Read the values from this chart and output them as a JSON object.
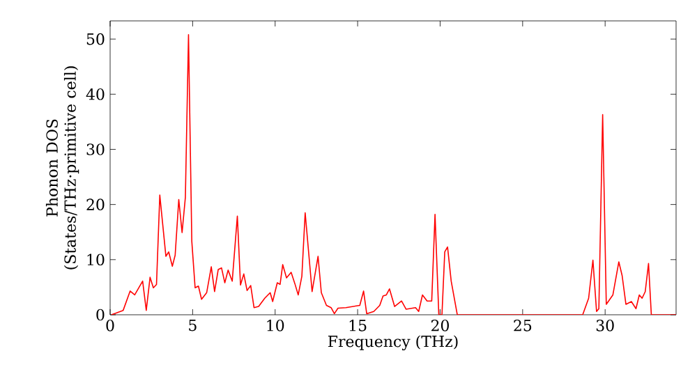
{
  "chart_data": {
    "type": "line",
    "xlabel": "Frequency (THz)",
    "ylabel": "Phonon DOS\n(States/THz·primitive cell)",
    "xlim": [
      0,
      34.3
    ],
    "ylim": [
      0,
      53.3
    ],
    "xticks": [
      0,
      5,
      10,
      15,
      20,
      25,
      30
    ],
    "yticks": [
      0,
      10,
      20,
      30,
      40,
      50
    ],
    "marker": "none",
    "line_style": "solid",
    "series": [
      {
        "color": "#ff0000",
        "x": [
          0.08,
          0.79,
          1.21,
          1.49,
          1.97,
          2.19,
          2.42,
          2.62,
          2.81,
          3.01,
          3.38,
          3.55,
          3.77,
          3.94,
          4.16,
          4.36,
          4.56,
          4.75,
          4.95,
          5.15,
          5.35,
          5.54,
          5.85,
          6.13,
          6.33,
          6.55,
          6.75,
          6.95,
          7.15,
          7.4,
          7.71,
          7.9,
          8.1,
          8.3,
          8.52,
          8.72,
          9.0,
          9.37,
          9.7,
          9.85,
          10.13,
          10.3,
          10.46,
          10.69,
          10.97,
          11.2,
          11.4,
          11.62,
          11.82,
          12.24,
          12.6,
          12.8,
          13.11,
          13.39,
          13.59,
          13.81,
          14.29,
          15.13,
          15.36,
          15.55,
          15.98,
          16.34,
          16.54,
          16.74,
          16.93,
          17.24,
          17.66,
          17.94,
          18.51,
          18.7,
          18.93,
          19.21,
          19.49,
          19.69,
          19.92,
          20.11,
          20.28,
          20.45,
          20.67,
          21.04,
          22.0,
          28.64,
          29.0,
          29.26,
          29.48,
          29.62,
          29.85,
          30.07,
          30.47,
          30.83,
          31.03,
          31.26,
          31.59,
          31.87,
          32.07,
          32.24,
          32.43,
          32.63,
          32.8,
          34.3
        ],
        "values": [
          0,
          0.8,
          4.3,
          3.6,
          6.1,
          0.8,
          6.8,
          4.9,
          5.5,
          21.7,
          10.6,
          11.4,
          8.8,
          10.8,
          20.9,
          14.9,
          21.3,
          50.8,
          13.3,
          4.9,
          5.2,
          2.8,
          4.0,
          8.7,
          4.2,
          8.2,
          8.5,
          5.8,
          8.1,
          6.1,
          17.9,
          5.4,
          7.4,
          4.4,
          5.3,
          1.3,
          1.5,
          3.0,
          4.0,
          2.4,
          5.8,
          5.5,
          9.1,
          6.7,
          7.7,
          5.6,
          3.6,
          7.0,
          18.5,
          4.2,
          10.6,
          4.0,
          1.7,
          1.3,
          0.2,
          1.2,
          1.3,
          1.7,
          4.3,
          0.2,
          0.6,
          1.7,
          3.4,
          3.6,
          4.7,
          1.5,
          2.5,
          1.0,
          1.3,
          0.6,
          3.6,
          2.5,
          2.5,
          18.2,
          0,
          0,
          11.4,
          12.3,
          6.1,
          0,
          0,
          0,
          3.0,
          9.9,
          0.6,
          1.1,
          36.3,
          1.9,
          3.6,
          9.6,
          7.1,
          1.9,
          2.4,
          1.1,
          3.6,
          3.0,
          4.2,
          9.3,
          0,
          0
        ]
      }
    ]
  }
}
